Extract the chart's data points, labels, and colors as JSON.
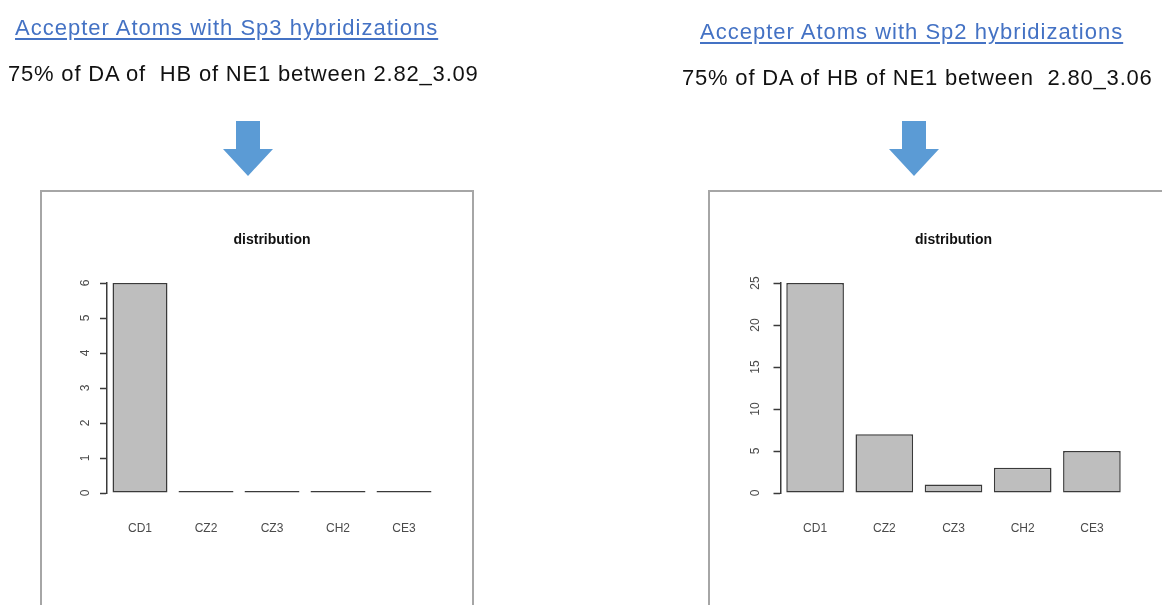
{
  "chart_data": [
    {
      "type": "bar",
      "title": "Accepter Atoms with Sp3 hybridizations",
      "subtitle": "75% of DA of  HB of NE1 between 2.82_3.09",
      "annotations": [
        "distribution"
      ],
      "categories": [
        "CD1",
        "CZ2",
        "CZ3",
        "CH2",
        "CE3"
      ],
      "values": [
        6,
        0,
        0,
        0,
        0
      ],
      "color": "#bebebe",
      "ylim": [
        0,
        6
      ],
      "yticks": [
        0,
        1,
        2,
        3,
        4,
        5,
        6
      ]
    },
    {
      "type": "bar",
      "title": "Accepter Atoms with Sp2 hybridizations",
      "subtitle": "75% of DA of HB of NE1 between  2.80_3.06",
      "annotations": [
        "distribution"
      ],
      "categories": [
        "CD1",
        "CZ2",
        "CZ3",
        "CH2",
        "CE3"
      ],
      "values": [
        25,
        7,
        1,
        3,
        5
      ],
      "color": "#bebebe",
      "ylim": [
        0,
        25
      ],
      "yticks": [
        0,
        5,
        10,
        15,
        20,
        25
      ]
    }
  ]
}
